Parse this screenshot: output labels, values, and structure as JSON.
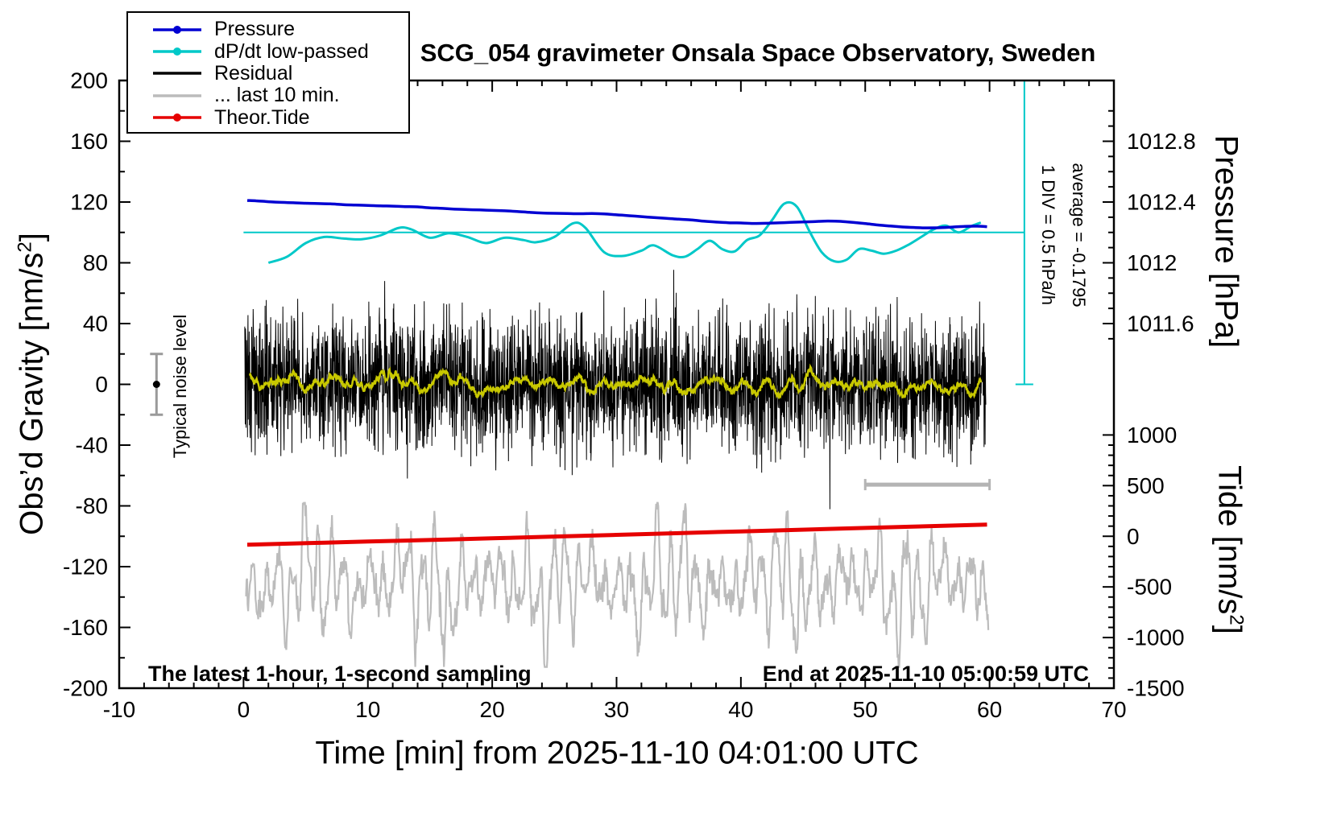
{
  "annotations": {
    "noise_level": "Typical noise level",
    "div_scale": "1 DIV = 0.5 hPa/h",
    "average": "average = -0.1795",
    "sampling": "The latest 1-hour, 1-second sampling",
    "end_time": "End at 2025-11-10 05:00:59 UTC"
  },
  "legend": {
    "items": [
      {
        "label": "Pressure",
        "color": "#0000d2",
        "marker": true
      },
      {
        "label": "dP/dt low-passed",
        "color": "#00c8c8",
        "marker": true
      },
      {
        "label": "Residual",
        "color": "#000000",
        "marker": false
      },
      {
        "label": "... last 10 min.",
        "color": "#bcbcbc",
        "marker": false
      },
      {
        "label": "Theor.Tide",
        "color": "#e60000",
        "marker": true
      }
    ]
  },
  "chart_data": {
    "type": "line",
    "title": "SCG_054 gravimeter Onsala Space Observatory, Sweden",
    "grid": false,
    "legend_position": "top-left",
    "x_axis": {
      "label": "Time [min] from 2025-11-10 04:01:00 UTC",
      "min": -10,
      "max": 70,
      "major_tick": 10,
      "minor_tick": 2
    },
    "y_axis_gravity": {
      "label_pre": "Obs’d Gravity [nm/s",
      "label_sup": "2",
      "label_post": "]",
      "min": -200,
      "max": 200,
      "major_tick": 40,
      "minor_tick": 20
    },
    "y_axis_pressure": {
      "label": "Pressure [hPa]",
      "values": [
        1012.8,
        1012.4,
        1012,
        1011.6
      ],
      "labels": [
        "1012.8",
        "1012.4",
        "1012",
        "1011.6"
      ],
      "minor_tick": 0.1,
      "range_hPa": [
        1011.5,
        1013.0
      ],
      "gravity_equiv": {
        "hPa_ref": 1012.8,
        "gravity_ref": 160,
        "gravity_per_hPa": 100
      }
    },
    "y_axis_tide": {
      "label_pre": "Tide [nm/s",
      "label_sup": "2",
      "label_post": "]",
      "values": [
        1000,
        500,
        0,
        -500,
        -1000,
        -1500
      ],
      "labels": [
        "1000",
        "500",
        "0",
        "-500",
        "-1000",
        "-1500"
      ],
      "minor_tick": 100,
      "range": [
        -1500,
        1000
      ],
      "gravity_equiv": {
        "tide_ref": 0,
        "gravity_ref": -100,
        "tide_per_gravity": 15
      }
    },
    "series": [
      {
        "name": "Pressure",
        "axis": "pressure",
        "unit": "hPa",
        "color": "#0000d2",
        "width": 3.5,
        "points": [
          [
            0.3,
            1012.41
          ],
          [
            1,
            1012.408
          ],
          [
            2,
            1012.402
          ],
          [
            3,
            1012.398
          ],
          [
            4,
            1012.395
          ],
          [
            5,
            1012.392
          ],
          [
            6,
            1012.39
          ],
          [
            7,
            1012.388
          ],
          [
            8,
            1012.383
          ],
          [
            9,
            1012.38
          ],
          [
            10,
            1012.378
          ],
          [
            11,
            1012.375
          ],
          [
            12,
            1012.373
          ],
          [
            13,
            1012.37
          ],
          [
            14,
            1012.368
          ],
          [
            15,
            1012.362
          ],
          [
            16,
            1012.358
          ],
          [
            17,
            1012.353
          ],
          [
            18,
            1012.35
          ],
          [
            19,
            1012.348
          ],
          [
            20,
            1012.345
          ],
          [
            21,
            1012.342
          ],
          [
            22,
            1012.338
          ],
          [
            23,
            1012.332
          ],
          [
            24,
            1012.328
          ],
          [
            25,
            1012.326
          ],
          [
            26,
            1012.325
          ],
          [
            27,
            1012.323
          ],
          [
            28,
            1012.324
          ],
          [
            29,
            1012.322
          ],
          [
            30,
            1012.316
          ],
          [
            31,
            1012.31
          ],
          [
            32,
            1012.304
          ],
          [
            33,
            1012.298
          ],
          [
            34,
            1012.293
          ],
          [
            35,
            1012.287
          ],
          [
            36,
            1012.282
          ],
          [
            37,
            1012.274
          ],
          [
            38,
            1012.268
          ],
          [
            39,
            1012.264
          ],
          [
            40,
            1012.262
          ],
          [
            41,
            1012.259
          ],
          [
            42,
            1012.26
          ],
          [
            43,
            1012.263
          ],
          [
            44,
            1012.266
          ],
          [
            45,
            1012.269
          ],
          [
            46,
            1012.272
          ],
          [
            47,
            1012.275
          ],
          [
            48,
            1012.273
          ],
          [
            49,
            1012.266
          ],
          [
            50,
            1012.258
          ],
          [
            51,
            1012.249
          ],
          [
            52,
            1012.242
          ],
          [
            53,
            1012.236
          ],
          [
            54,
            1012.232
          ],
          [
            55,
            1012.23
          ],
          [
            56,
            1012.231
          ],
          [
            57,
            1012.235
          ],
          [
            58,
            1012.24
          ],
          [
            59,
            1012.241
          ],
          [
            59.8,
            1012.238
          ]
        ]
      },
      {
        "name": "dP/dt low-passed",
        "axis": "gravity",
        "unit": "1 DIV = 0.5 hPa/h",
        "color": "#00c8c8",
        "width": 3,
        "points": [
          [
            2,
            80
          ],
          [
            3.5,
            84
          ],
          [
            5,
            93
          ],
          [
            6.5,
            97
          ],
          [
            8,
            96
          ],
          [
            9.5,
            95.5
          ],
          [
            11,
            98
          ],
          [
            12.5,
            103
          ],
          [
            13.5,
            102
          ],
          [
            15,
            96.5
          ],
          [
            16.5,
            99.5
          ],
          [
            18,
            97
          ],
          [
            19.5,
            93
          ],
          [
            21,
            96.5
          ],
          [
            22.5,
            95
          ],
          [
            23.5,
            93.5
          ],
          [
            25,
            97
          ],
          [
            26.5,
            106
          ],
          [
            27.5,
            103
          ],
          [
            29,
            87
          ],
          [
            30.5,
            84.5
          ],
          [
            32,
            88
          ],
          [
            33,
            91.5
          ],
          [
            34.5,
            85
          ],
          [
            35.5,
            84
          ],
          [
            36.5,
            89
          ],
          [
            37.5,
            94.5
          ],
          [
            38.5,
            89
          ],
          [
            39.5,
            87.5
          ],
          [
            40.5,
            95
          ],
          [
            41.5,
            98
          ],
          [
            42.5,
            108
          ],
          [
            43.5,
            119
          ],
          [
            44.5,
            117
          ],
          [
            45.5,
            101
          ],
          [
            46.5,
            87
          ],
          [
            47.5,
            81
          ],
          [
            48.5,
            82
          ],
          [
            49.5,
            89
          ],
          [
            50.5,
            88
          ],
          [
            51.5,
            86
          ],
          [
            52.5,
            88
          ],
          [
            53.5,
            92
          ],
          [
            54.5,
            97
          ],
          [
            55.5,
            102
          ],
          [
            56.5,
            104.5
          ],
          [
            57.5,
            100
          ],
          [
            58.5,
            104
          ],
          [
            59.3,
            106.5
          ]
        ]
      },
      {
        "name": "Residual",
        "axis": "gravity",
        "unit": "nm/s2",
        "color": "#000000",
        "width": 1,
        "noise_spec": {
          "seed": 1110,
          "n": 3000,
          "x_start": 0.1,
          "x_end": 59.7,
          "mean": 0,
          "sigma": 22,
          "clip": 92,
          "spike_prob": 0.012,
          "spike_gain": 1.8
        }
      },
      {
        "name": "Residual low-passed",
        "axis": "gravity",
        "unit": "nm/s2",
        "color": "#c8c800",
        "width": 2.5,
        "derived": "moving_average_of_residual",
        "window": 41
      },
      {
        "name": "... last 10 min.",
        "axis": "gravity",
        "unit": "nm/s2 (expanded view)",
        "color": "#bcbcbc",
        "width": 2.2,
        "osc_spec": {
          "seed": 4242,
          "n": 1400,
          "x_start": 0.2,
          "x_end": 59.9,
          "center": -131,
          "components": [
            {
              "period": 1.05,
              "amp": 20
            },
            {
              "period": 2.55,
              "amp": 12
            },
            {
              "period": 0.58,
              "amp": 8
            },
            {
              "period": 7.3,
              "amp": 7
            }
          ],
          "am_period": 9.5,
          "am_depth": 0.45,
          "noise_sigma": 5,
          "clip_low": -186,
          "clip_high": -78
        }
      },
      {
        "name": "Theor.Tide",
        "axis": "tide",
        "unit": "nm/s2",
        "color": "#e60000",
        "width": 5,
        "points": [
          [
            0.3,
            -84
          ],
          [
            10,
            -52
          ],
          [
            20,
            -20
          ],
          [
            30,
            14
          ],
          [
            40,
            48
          ],
          [
            50,
            82
          ],
          [
            59.8,
            115
          ]
        ]
      }
    ],
    "markers": {
      "ref_line": {
        "gravity": 100,
        "x_start": 0,
        "x_end": 62.8,
        "color": "#00c8c8"
      },
      "div_bar": {
        "x": 62.8,
        "gravity_top": 200,
        "gravity_bottom": 0,
        "color": "#00c8c8"
      },
      "noise_level_bar": {
        "x": -7,
        "gravity_center": 0,
        "half_range": 20,
        "color": "#9a9a9a"
      },
      "scale_bar_last10": {
        "x_start": 50,
        "x_end": 60,
        "gravity": -66,
        "color": "#b4b4b4"
      }
    }
  }
}
